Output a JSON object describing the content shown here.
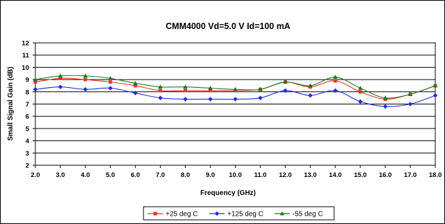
{
  "chart_data": {
    "type": "line",
    "title": "CMM4000 Vd=5.0 V Id=100 mA",
    "xlabel": "Frequency (GHz)",
    "ylabel": "Small Signal Gain (dB)",
    "xlim": [
      2.0,
      18.0
    ],
    "ylim": [
      2,
      12
    ],
    "x_ticks": [
      "2.0",
      "3.0",
      "4.0",
      "5.0",
      "6.0",
      "7.0",
      "8.0",
      "9.0",
      "10.0",
      "11.0",
      "12.0",
      "13.0",
      "14.0",
      "15.0",
      "16.0",
      "17.0",
      "18.0"
    ],
    "y_ticks": [
      "2",
      "3",
      "4",
      "5",
      "6",
      "7",
      "8",
      "9",
      "10",
      "11",
      "12"
    ],
    "grid": "horizontal",
    "legend_position": "bottom",
    "x": [
      2.0,
      3.0,
      4.0,
      5.0,
      6.0,
      7.0,
      8.0,
      9.0,
      10.0,
      11.0,
      12.0,
      13.0,
      14.0,
      15.0,
      16.0,
      17.0,
      18.0
    ],
    "series": [
      {
        "name": "+25 deg C",
        "color": "#e8322b",
        "marker": "square",
        "values": [
          8.8,
          9.1,
          9.0,
          8.8,
          8.5,
          8.1,
          8.1,
          8.1,
          8.1,
          8.2,
          8.8,
          8.4,
          8.9,
          8.0,
          7.4,
          7.8,
          8.5
        ]
      },
      {
        "name": "+125 deg C",
        "color": "#1f2de0",
        "marker": "diamond",
        "values": [
          8.2,
          8.4,
          8.2,
          8.3,
          7.9,
          7.5,
          7.4,
          7.4,
          7.4,
          7.5,
          8.1,
          7.7,
          8.1,
          7.2,
          6.8,
          7.0,
          7.7
        ]
      },
      {
        "name": "-55 deg C",
        "color": "#1f7a1f",
        "marker": "triangle",
        "values": [
          9.0,
          9.3,
          9.3,
          9.1,
          8.7,
          8.4,
          8.4,
          8.3,
          8.2,
          8.2,
          8.8,
          8.5,
          9.2,
          8.3,
          7.5,
          7.8,
          8.5
        ]
      }
    ]
  }
}
